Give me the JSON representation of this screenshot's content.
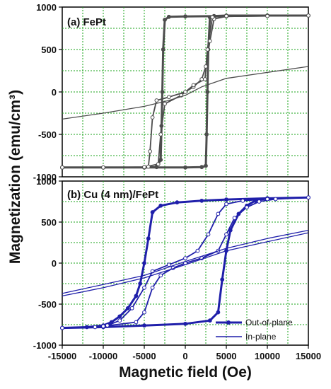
{
  "chart_data": [
    {
      "type": "line",
      "title": "",
      "panel_label": "(a) FePt",
      "xlabel": "Magnetic field (Oe)",
      "ylabel": "Magnetization (emu/cm³)",
      "xlim": [
        -15000,
        15000
      ],
      "ylim": [
        -1000,
        1000
      ],
      "x_ticks": [
        "-15000",
        "-10000",
        "-5000",
        "0",
        "5000",
        "10000",
        "15000"
      ],
      "y_ticks": [
        "1000",
        "500",
        "0",
        "-500",
        "-1000"
      ],
      "grid": true,
      "series": [
        {
          "color": "#4d4d4d",
          "marker": "filled-circle",
          "points": [
            [
              -15000,
              -890
            ],
            [
              -10000,
              -890
            ],
            [
              -5000,
              -890
            ],
            [
              -3500,
              -885
            ],
            [
              -3000,
              -800
            ],
            [
              -2900,
              -400
            ],
            [
              -2800,
              0
            ],
            [
              -2700,
              500
            ],
            [
              -2500,
              850
            ],
            [
              -2000,
              885
            ],
            [
              0,
              890
            ],
            [
              5000,
              895
            ],
            [
              10000,
              900
            ],
            [
              15000,
              900
            ],
            [
              10000,
              900
            ],
            [
              5000,
              900
            ],
            [
              3500,
              895
            ],
            [
              3000,
              880
            ],
            [
              2800,
              500
            ],
            [
              2700,
              0
            ],
            [
              2600,
              -500
            ],
            [
              2500,
              -870
            ],
            [
              2000,
              -885
            ],
            [
              0,
              -890
            ],
            [
              -5000,
              -890
            ],
            [
              -10000,
              -890
            ],
            [
              -15000,
              -890
            ]
          ]
        },
        {
          "color": "#4d4d4d",
          "marker": "open-circle",
          "points": [
            [
              -15000,
              -890
            ],
            [
              -10000,
              -890
            ],
            [
              -5000,
              -885
            ],
            [
              -4500,
              -880
            ],
            [
              -4300,
              -700
            ],
            [
              -4000,
              -300
            ],
            [
              -3500,
              -100
            ],
            [
              -2000,
              -60
            ],
            [
              0,
              0
            ],
            [
              1000,
              60
            ],
            [
              2000,
              150
            ],
            [
              2500,
              300
            ],
            [
              3000,
              600
            ],
            [
              3500,
              860
            ],
            [
              5000,
              890
            ],
            [
              10000,
              895
            ],
            [
              15000,
              900
            ],
            [
              10000,
              895
            ],
            [
              5000,
              895
            ],
            [
              3300,
              880
            ],
            [
              2700,
              500
            ],
            [
              2400,
              150
            ],
            [
              1000,
              80
            ],
            [
              -500,
              -40
            ],
            [
              -2500,
              -140
            ],
            [
              -3000,
              -500
            ],
            [
              -3300,
              -850
            ],
            [
              -5000,
              -885
            ],
            [
              -10000,
              -890
            ],
            [
              -15000,
              -890
            ]
          ]
        },
        {
          "color": "#4d4d4d",
          "marker": "none",
          "points": [
            [
              -15000,
              -320
            ],
            [
              -10000,
              -250
            ],
            [
              -5000,
              -170
            ],
            [
              -2000,
              -100
            ],
            [
              0,
              -40
            ],
            [
              2000,
              60
            ],
            [
              5000,
              160
            ],
            [
              10000,
              230
            ],
            [
              15000,
              300
            ]
          ]
        }
      ]
    },
    {
      "type": "line",
      "title": "",
      "panel_label": "(b) Cu (4 nm)/FePt",
      "xlabel": "Magnetic field (Oe)",
      "ylabel": "Magnetization (emu/cm³)",
      "xlim": [
        -15000,
        15000
      ],
      "ylim": [
        -1000,
        1000
      ],
      "x_ticks": [
        "-15000",
        "-10000",
        "-5000",
        "0",
        "5000",
        "10000",
        "15000"
      ],
      "y_ticks": [
        "1000",
        "500",
        "0",
        "-500",
        "-1000"
      ],
      "grid": true,
      "legend_position": "bottom-right",
      "series": [
        {
          "name": "Out-of-plane",
          "color": "#1f1faa",
          "marker": "filled-circle",
          "points": [
            [
              -15000,
              -790
            ],
            [
              -12000,
              -780
            ],
            [
              -10000,
              -760
            ],
            [
              -9000,
              -720
            ],
            [
              -8000,
              -650
            ],
            [
              -7000,
              -550
            ],
            [
              -6000,
              -400
            ],
            [
              -5500,
              -250
            ],
            [
              -5000,
              0
            ],
            [
              -4500,
              300
            ],
            [
              -4000,
              620
            ],
            [
              -3000,
              700
            ],
            [
              -1000,
              740
            ],
            [
              2000,
              760
            ],
            [
              5000,
              775
            ],
            [
              10000,
              790
            ],
            [
              15000,
              800
            ],
            [
              10000,
              790
            ],
            [
              8500,
              760
            ],
            [
              7500,
              700
            ],
            [
              6500,
              600
            ],
            [
              5500,
              400
            ],
            [
              5000,
              150
            ],
            [
              4500,
              -200
            ],
            [
              4000,
              -600
            ],
            [
              3000,
              -700
            ],
            [
              0,
              -740
            ],
            [
              -5000,
              -760
            ],
            [
              -10000,
              -780
            ],
            [
              -15000,
              -790
            ]
          ]
        },
        {
          "color": "#1f1faa",
          "marker": "open-circle",
          "points": [
            [
              -15000,
              -790
            ],
            [
              -11000,
              -780
            ],
            [
              -9500,
              -760
            ],
            [
              -8000,
              -700
            ],
            [
              -6500,
              -550
            ],
            [
              -5000,
              -300
            ],
            [
              -4000,
              -100
            ],
            [
              -2000,
              -20
            ],
            [
              0,
              60
            ],
            [
              1500,
              150
            ],
            [
              2800,
              350
            ],
            [
              4000,
              600
            ],
            [
              5000,
              720
            ],
            [
              7000,
              760
            ],
            [
              10000,
              780
            ],
            [
              15000,
              800
            ],
            [
              11000,
              780
            ],
            [
              9000,
              750
            ],
            [
              7500,
              680
            ],
            [
              6000,
              550
            ],
            [
              5000,
              350
            ],
            [
              4000,
              150
            ],
            [
              2000,
              60
            ],
            [
              0,
              0
            ],
            [
              -1500,
              -60
            ],
            [
              -3000,
              -150
            ],
            [
              -4000,
              -300
            ],
            [
              -5000,
              -600
            ],
            [
              -6000,
              -720
            ],
            [
              -10000,
              -770
            ],
            [
              -15000,
              -790
            ]
          ]
        },
        {
          "name": "In-plane",
          "color": "#1f1faa",
          "marker": "none",
          "points": [
            [
              -15000,
              -400
            ],
            [
              -10000,
              -300
            ],
            [
              -5000,
              -180
            ],
            [
              0,
              -20
            ],
            [
              5000,
              150
            ],
            [
              10000,
              260
            ],
            [
              15000,
              370
            ]
          ]
        },
        {
          "color": "#1f1faa",
          "marker": "none",
          "points": [
            [
              -15000,
              -370
            ],
            [
              -10000,
              -260
            ],
            [
              -5000,
              -150
            ],
            [
              0,
              20
            ],
            [
              5000,
              180
            ],
            [
              10000,
              300
            ],
            [
              15000,
              400
            ]
          ]
        }
      ]
    }
  ]
}
